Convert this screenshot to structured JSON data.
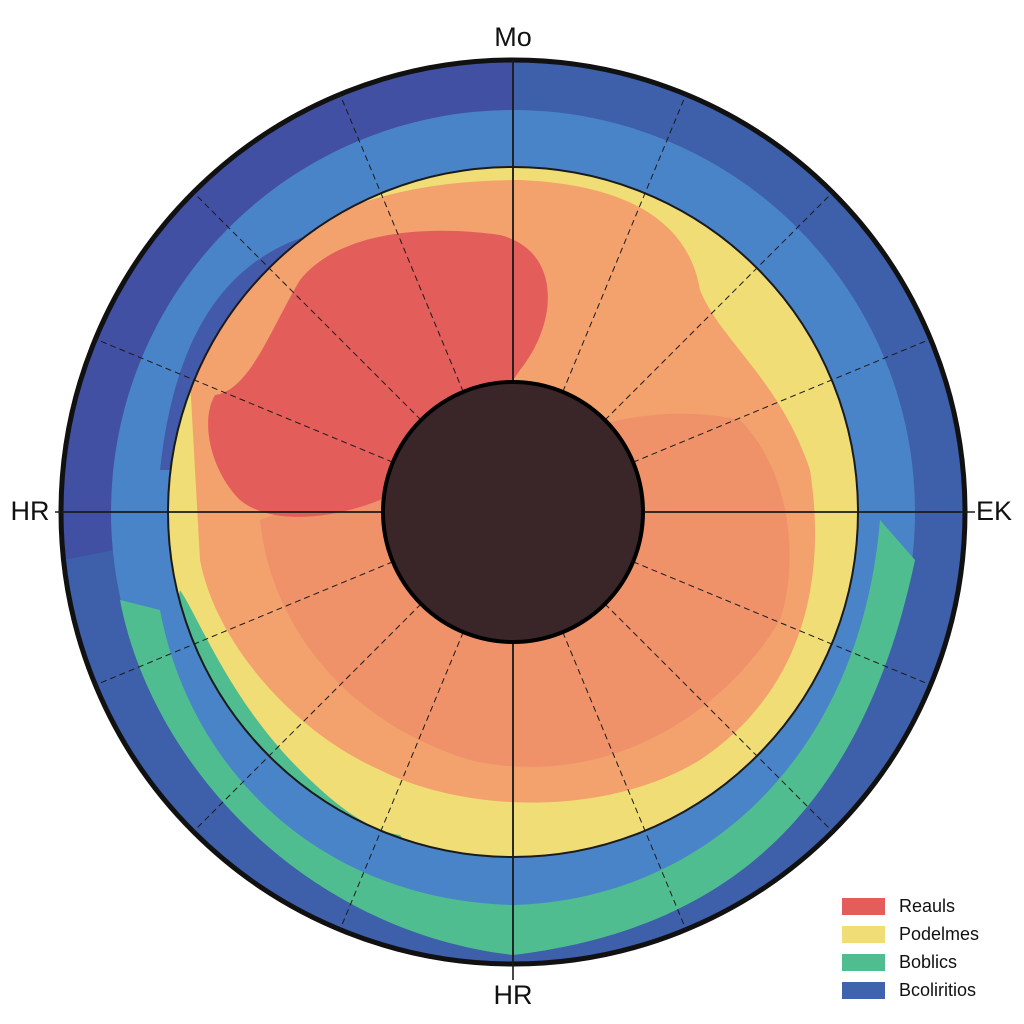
{
  "chart_data": {
    "type": "polar-heatmap",
    "axis_labels": {
      "top": "Mo",
      "left": "HR",
      "right": "EK",
      "bottom": "HR"
    },
    "sectors": 16,
    "legend": [
      {
        "label": "Reauls",
        "color": "#e35d5b"
      },
      {
        "label": "Podelmes",
        "color": "#f1dd76"
      },
      {
        "label": "Boblics",
        "color": "#4fbd8f"
      },
      {
        "label": "Bcoliritios",
        "color": "#3f63ad"
      }
    ],
    "legend_placement": "bottom-right",
    "colors": {
      "outer_ring": "#3e5fa9",
      "outer_ring_dark": "#4150a2",
      "middle_ring": "#4a84c8",
      "field_orange": "#f3a26e",
      "field_salmon": "#ed8f6a",
      "field_red": "#e35d5b",
      "field_yellow": "#f1dd76",
      "field_green": "#4fbd8f",
      "center_hole": "#3a2528",
      "grid": "#1b1b1b"
    }
  }
}
